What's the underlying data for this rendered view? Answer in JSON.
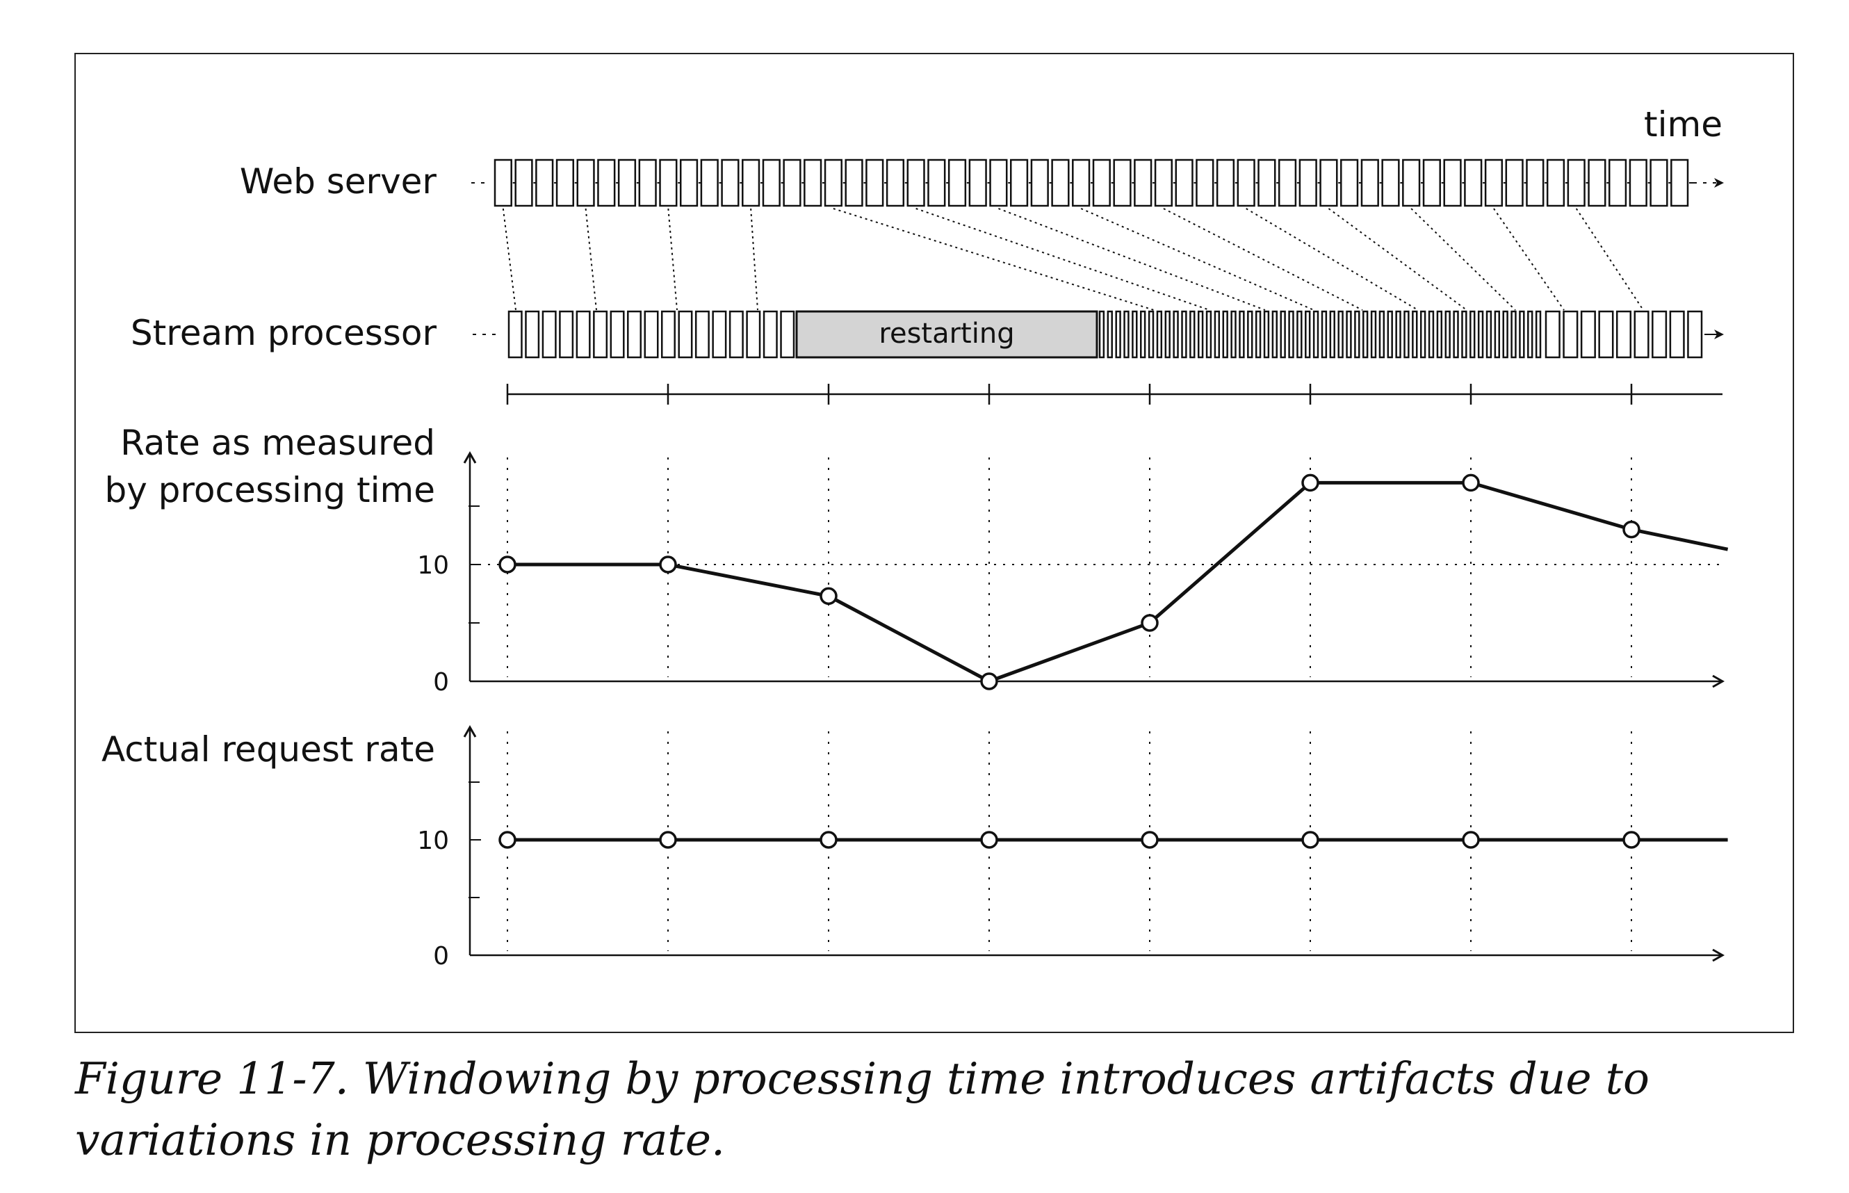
{
  "figure": {
    "time_label": "time",
    "web_server_label": "Web server",
    "stream_processor_label": "Stream processor",
    "restarting_label": "restarting",
    "rate_processing_label_line1": "Rate as measured",
    "rate_processing_label_line2": "by processing time",
    "actual_rate_label": "Actual request rate",
    "colors": {
      "ink": "#111111",
      "restart_fill": "#d4d4d4",
      "background": "#ffffff"
    }
  },
  "chart_data": [
    {
      "type": "line",
      "title": "",
      "ylabel": "Rate as measured by processing time",
      "yticks": [
        "0",
        "10"
      ],
      "ylim": [
        0,
        20
      ],
      "x": [
        0,
        1,
        2,
        3,
        4,
        5,
        6,
        7,
        7.6
      ],
      "values": [
        10,
        10,
        7.3,
        0,
        5,
        17,
        17,
        13,
        11.3
      ],
      "grid": "dotted verticals at window boundaries, dotted reference line at 10"
    },
    {
      "type": "line",
      "title": "",
      "ylabel": "Actual request rate",
      "yticks": [
        "0",
        "10"
      ],
      "ylim": [
        0,
        20
      ],
      "x": [
        0,
        1,
        2,
        3,
        4,
        5,
        6,
        7,
        7.6
      ],
      "values": [
        10,
        10,
        10,
        10,
        10,
        10,
        10,
        10,
        10
      ],
      "grid": "dotted verticals at window boundaries"
    }
  ],
  "caption": {
    "text": "Figure 11-7. Windowing by processing time introduces artifacts due to variations in processing rate."
  }
}
